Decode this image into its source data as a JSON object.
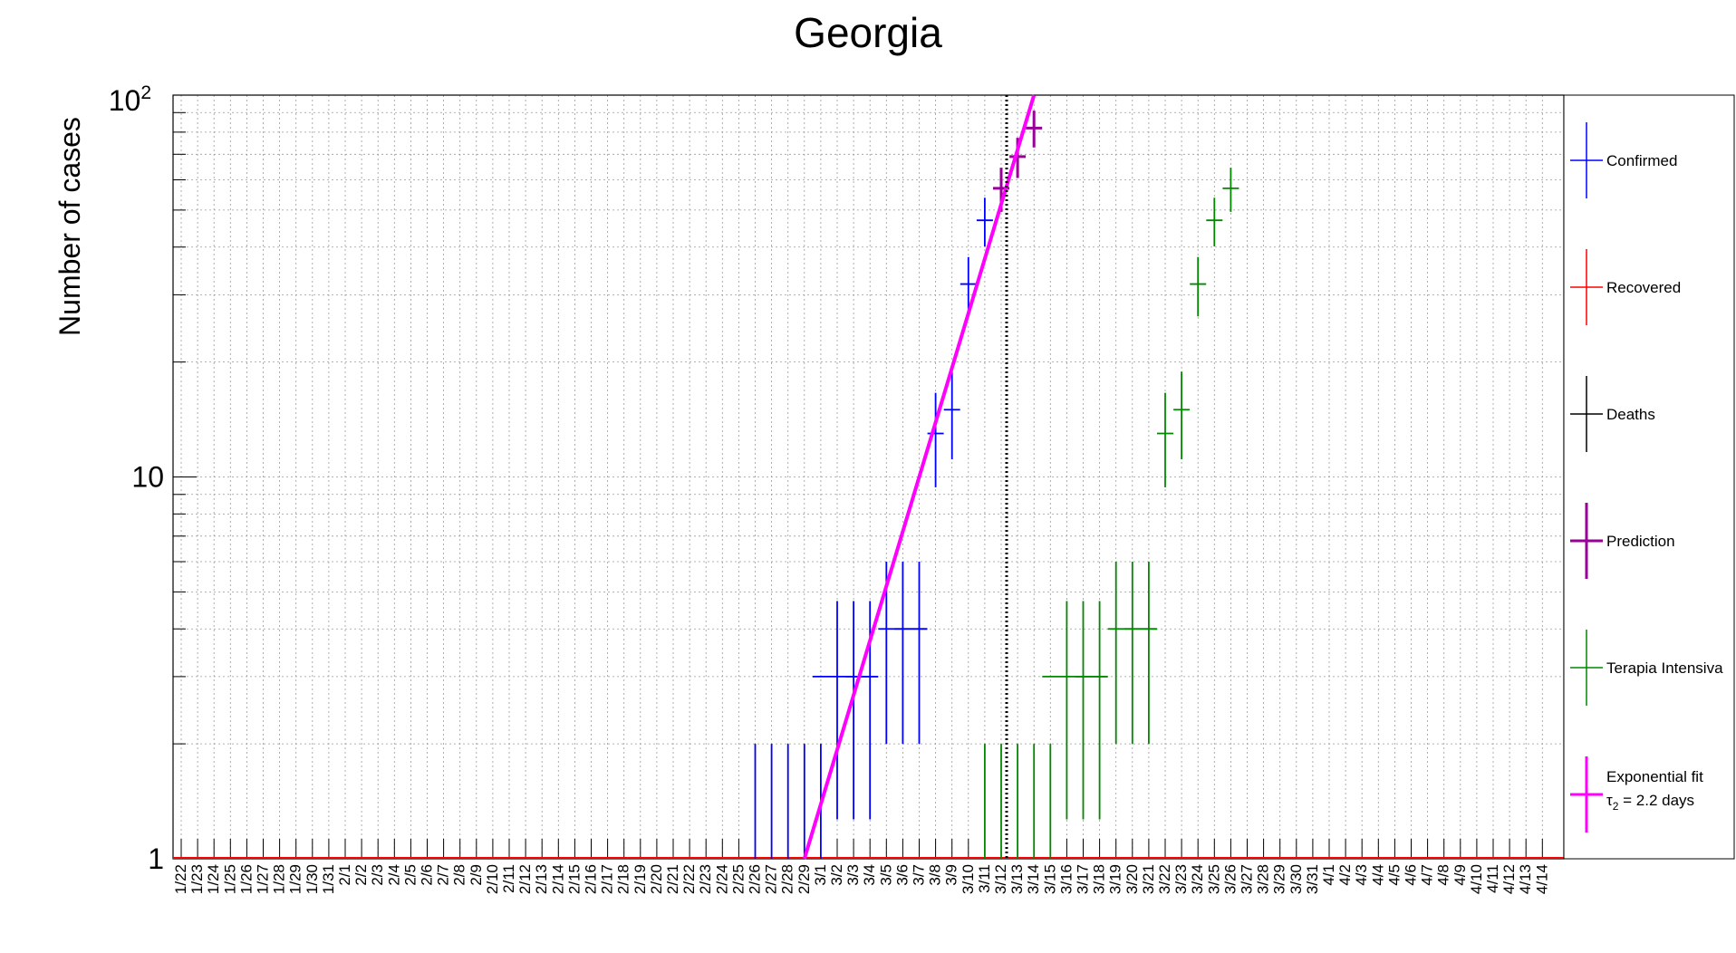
{
  "chart_data": {
    "type": "scatter",
    "title": "Georgia",
    "xlabel": "",
    "ylabel": "Number of cases",
    "y_scale": "log",
    "ylim": [
      1,
      100
    ],
    "y_ticks": [
      {
        "value": 1,
        "label": "1"
      },
      {
        "value": 10,
        "label": "10"
      },
      {
        "value": 100,
        "label": "10",
        "exponent": "2"
      }
    ],
    "grid": true,
    "legend_position": "right",
    "categories": [
      "1/22",
      "1/23",
      "1/24",
      "1/25",
      "1/26",
      "1/27",
      "1/28",
      "1/29",
      "1/30",
      "1/31",
      "2/1",
      "2/2",
      "2/3",
      "2/4",
      "2/5",
      "2/6",
      "2/7",
      "2/8",
      "2/9",
      "2/10",
      "2/11",
      "2/12",
      "2/13",
      "2/14",
      "2/15",
      "2/16",
      "2/17",
      "2/18",
      "2/19",
      "2/20",
      "2/21",
      "2/22",
      "2/23",
      "2/24",
      "2/25",
      "2/26",
      "2/27",
      "2/28",
      "2/29",
      "3/1",
      "3/2",
      "3/3",
      "3/4",
      "3/5",
      "3/6",
      "3/7",
      "3/8",
      "3/9",
      "3/10",
      "3/11",
      "3/12",
      "3/13",
      "3/14",
      "3/15",
      "3/16",
      "3/17",
      "3/18",
      "3/19",
      "3/20",
      "3/21",
      "3/22",
      "3/23",
      "3/24",
      "3/25",
      "3/26",
      "3/27",
      "3/28",
      "3/29",
      "3/30",
      "3/31",
      "4/1",
      "4/2",
      "4/3",
      "4/4",
      "4/5",
      "4/6",
      "4/7",
      "4/8",
      "4/9",
      "4/10",
      "4/11",
      "4/12",
      "4/13",
      "4/14"
    ],
    "series": [
      {
        "name": "Confirmed",
        "color": "#0000ff",
        "points": [
          {
            "x": "2/26",
            "y": 1
          },
          {
            "x": "2/27",
            "y": 1
          },
          {
            "x": "2/28",
            "y": 1
          },
          {
            "x": "2/29",
            "y": 1
          },
          {
            "x": "3/1",
            "y": 1
          },
          {
            "x": "3/2",
            "y": 3,
            "x_span": [
              "3/1",
              "3/4"
            ]
          },
          {
            "x": "3/3",
            "y": 3
          },
          {
            "x": "3/4",
            "y": 3
          },
          {
            "x": "3/5",
            "y": 4,
            "x_span": [
              "3/5",
              "3/7"
            ]
          },
          {
            "x": "3/6",
            "y": 4
          },
          {
            "x": "3/7",
            "y": 4
          },
          {
            "x": "3/8",
            "y": 13
          },
          {
            "x": "3/9",
            "y": 15
          },
          {
            "x": "3/10",
            "y": 32
          },
          {
            "x": "3/11",
            "y": 47
          }
        ]
      },
      {
        "name": "Recovered",
        "color": "#ff0000",
        "points": []
      },
      {
        "name": "Deaths",
        "color": "#000000",
        "points": []
      },
      {
        "name": "Prediction",
        "color": "#990099",
        "points": [
          {
            "x": "3/12",
            "y": 57
          },
          {
            "x": "3/13",
            "y": 69
          },
          {
            "x": "3/14",
            "y": 82
          }
        ]
      },
      {
        "name": "Terapia Intensiva",
        "color": "#008800",
        "points": [
          {
            "x": "3/11",
            "y": 1
          },
          {
            "x": "3/12",
            "y": 1
          },
          {
            "x": "3/13",
            "y": 1
          },
          {
            "x": "3/14",
            "y": 1
          },
          {
            "x": "3/15",
            "y": 1
          },
          {
            "x": "3/16",
            "y": 3,
            "x_span": [
              "3/15",
              "3/18"
            ]
          },
          {
            "x": "3/17",
            "y": 3
          },
          {
            "x": "3/18",
            "y": 3
          },
          {
            "x": "3/19",
            "y": 4,
            "x_span": [
              "3/19",
              "3/21"
            ]
          },
          {
            "x": "3/20",
            "y": 4
          },
          {
            "x": "3/21",
            "y": 4
          },
          {
            "x": "3/22",
            "y": 13
          },
          {
            "x": "3/23",
            "y": 15
          },
          {
            "x": "3/24",
            "y": 32
          },
          {
            "x": "3/25",
            "y": 47
          },
          {
            "x": "3/26",
            "y": 57
          }
        ]
      },
      {
        "name": "Exponential fit",
        "color": "#ff00ff",
        "subtitle_symbol": "τ",
        "subtitle_sub": "2",
        "subtitle_text": " = 2.2 days",
        "fit_line": [
          {
            "x": "2/29",
            "y": 1
          },
          {
            "x": "3/14",
            "y": 100
          }
        ]
      }
    ],
    "vertical_marker": {
      "x": "3/12",
      "style": "dotted",
      "color": "#000000"
    },
    "baseline": {
      "y": 1,
      "color": "#ff0000"
    }
  }
}
